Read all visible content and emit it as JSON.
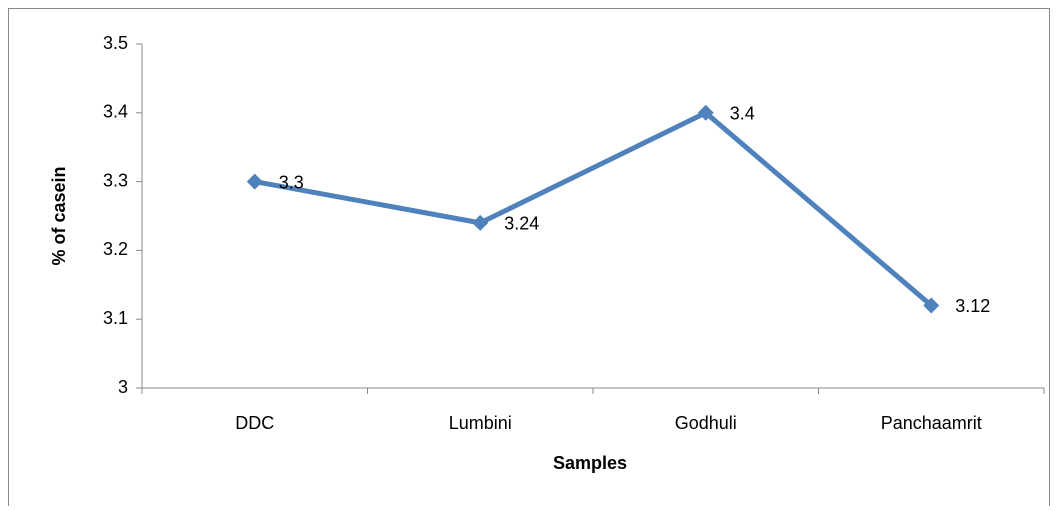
{
  "chart_data": {
    "type": "line",
    "x_label": "Samples",
    "y_label": "% of casein",
    "categories": [
      "DDC",
      "Lumbini",
      "Godhuli",
      "Panchaamrit"
    ],
    "values": [
      3.3,
      3.24,
      3.4,
      3.12
    ],
    "color": "#4f81bd",
    "ylim": [
      3,
      3.5
    ],
    "yticks": [
      3,
      3.1,
      3.2,
      3.3,
      3.4,
      3.5
    ],
    "grid": false,
    "data_labels": true
  }
}
